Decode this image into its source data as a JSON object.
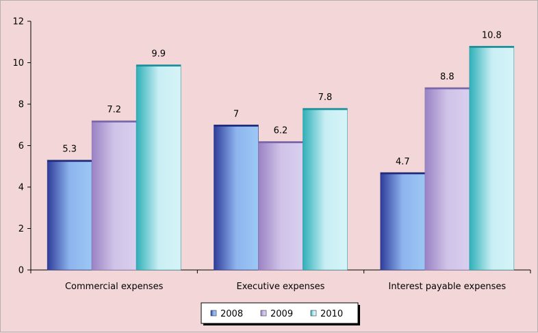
{
  "chart_data": {
    "type": "bar",
    "title": "",
    "xlabel": "",
    "ylabel": "",
    "categories": [
      "Commercial expenses",
      "Executive expenses",
      "Interest payable expenses"
    ],
    "series": [
      {
        "name": "2008",
        "values": [
          5.3,
          7,
          4.7
        ],
        "color": "#5a6ec8"
      },
      {
        "name": "2009",
        "values": [
          7.2,
          6.2,
          8.8
        ],
        "color": "#c7b6df"
      },
      {
        "name": "2010",
        "values": [
          9.9,
          7.8,
          10.8
        ],
        "color": "#7fd4e0"
      }
    ],
    "data_labels": [
      [
        "5.3",
        "7",
        "4.7"
      ],
      [
        "7.2",
        "6.2",
        "8.8"
      ],
      [
        "9.9",
        "7.8",
        "10.8"
      ]
    ],
    "y_ticks": [
      "0",
      "2",
      "4",
      "6",
      "8",
      "10",
      "12"
    ],
    "ylim": [
      0,
      12
    ],
    "grid": false,
    "legend_position": "bottom"
  }
}
